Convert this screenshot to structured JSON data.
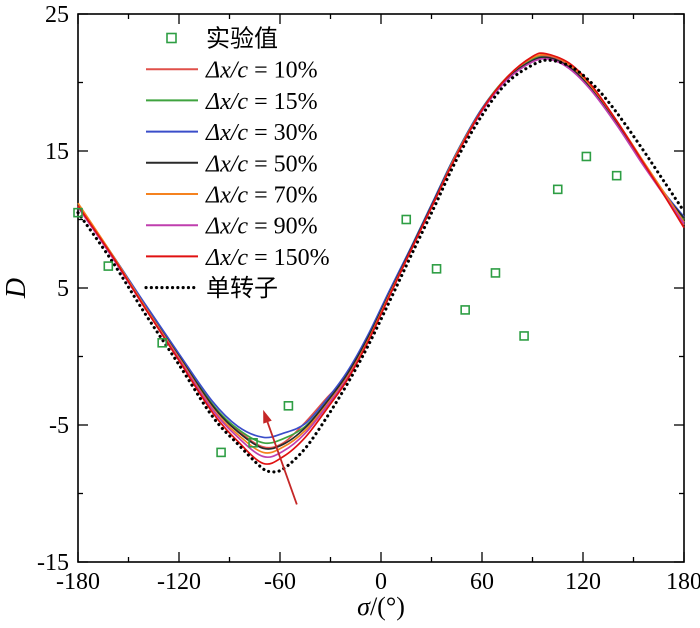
{
  "page": {
    "background": "#ffffff"
  },
  "chart_data": {
    "type": "line",
    "title": "",
    "xlabel": "σ/(°)",
    "xlabel_italic": "σ",
    "xlabel_rest": "/(°)",
    "ylabel": "D",
    "xlim": [
      -180,
      180
    ],
    "ylim": [
      -15,
      25
    ],
    "x_ticks": [
      -180,
      -120,
      -60,
      0,
      60,
      120,
      180
    ],
    "y_ticks": [
      -15,
      -5,
      5,
      15,
      25
    ],
    "x_minor_step": 30,
    "y_minor_step": 5,
    "grid": false,
    "legend_position": "upper-left",
    "arrow": {
      "color": "#c52727",
      "from": [
        -50,
        -10.8
      ],
      "to": [
        -70,
        -3.9
      ]
    },
    "scatter": {
      "key": "experimental",
      "name": "实验值",
      "color": "#2e9e44",
      "marker": "open-square",
      "points": [
        [
          -180,
          10.5
        ],
        [
          -162,
          6.6
        ],
        [
          -130,
          1.0
        ],
        [
          -95,
          -7.0
        ],
        [
          -76,
          -6.3
        ],
        [
          -55,
          -3.6
        ],
        [
          15,
          10.0
        ],
        [
          33,
          6.4
        ],
        [
          50,
          3.4
        ],
        [
          68,
          6.1
        ],
        [
          85,
          1.5
        ],
        [
          105,
          12.2
        ],
        [
          122,
          14.6
        ],
        [
          140,
          13.2
        ]
      ]
    },
    "series": [
      {
        "key": "dx10",
        "name": "Δx/c = 10%",
        "color": "#e0504a",
        "style": "solid",
        "points": [
          [
            -180,
            11.0
          ],
          [
            -160,
            7.4
          ],
          [
            -140,
            3.6
          ],
          [
            -120,
            0.0
          ],
          [
            -100,
            -3.6
          ],
          [
            -85,
            -5.4
          ],
          [
            -70,
            -6.6
          ],
          [
            -58,
            -6.3
          ],
          [
            -45,
            -4.8
          ],
          [
            -32,
            -3.0
          ],
          [
            -20,
            -1.4
          ],
          [
            -8,
            1.2
          ],
          [
            5,
            4.6
          ],
          [
            18,
            7.9
          ],
          [
            32,
            11.5
          ],
          [
            45,
            14.8
          ],
          [
            60,
            18.0
          ],
          [
            75,
            20.3
          ],
          [
            90,
            21.7
          ],
          [
            100,
            21.9
          ],
          [
            112,
            21.2
          ],
          [
            125,
            19.6
          ],
          [
            140,
            17.1
          ],
          [
            155,
            14.3
          ],
          [
            168,
            11.9
          ],
          [
            180,
            9.6
          ]
        ]
      },
      {
        "key": "dx15",
        "name": "Δx/c = 15%",
        "color": "#3fa33f",
        "style": "solid",
        "points": [
          [
            -180,
            11.1
          ],
          [
            -160,
            7.5
          ],
          [
            -140,
            3.7
          ],
          [
            -120,
            0.1
          ],
          [
            -100,
            -3.5
          ],
          [
            -85,
            -5.3
          ],
          [
            -70,
            -6.3
          ],
          [
            -58,
            -6.0
          ],
          [
            -45,
            -5.1
          ],
          [
            -32,
            -3.3
          ],
          [
            -20,
            -1.2
          ],
          [
            -8,
            1.4
          ],
          [
            5,
            4.7
          ],
          [
            18,
            8.0
          ],
          [
            32,
            11.6
          ],
          [
            45,
            14.9
          ],
          [
            60,
            18.1
          ],
          [
            75,
            20.4
          ],
          [
            90,
            21.7
          ],
          [
            100,
            21.8
          ],
          [
            112,
            21.1
          ],
          [
            125,
            19.5
          ],
          [
            140,
            17.0
          ],
          [
            155,
            14.2
          ],
          [
            168,
            11.9
          ],
          [
            180,
            10.0
          ]
        ]
      },
      {
        "key": "dx30",
        "name": "Δx/c = 30%",
        "color": "#3a4dc9",
        "style": "solid",
        "points": [
          [
            -180,
            11.0
          ],
          [
            -160,
            7.5
          ],
          [
            -140,
            3.8
          ],
          [
            -120,
            0.2
          ],
          [
            -100,
            -3.3
          ],
          [
            -85,
            -5.1
          ],
          [
            -70,
            -5.9
          ],
          [
            -58,
            -5.6
          ],
          [
            -45,
            -4.9
          ],
          [
            -32,
            -3.1
          ],
          [
            -20,
            -1.1
          ],
          [
            -8,
            1.5
          ],
          [
            5,
            4.8
          ],
          [
            18,
            8.0
          ],
          [
            32,
            11.6
          ],
          [
            45,
            14.9
          ],
          [
            60,
            18.1
          ],
          [
            75,
            20.3
          ],
          [
            90,
            21.6
          ],
          [
            100,
            21.8
          ],
          [
            112,
            21.1
          ],
          [
            125,
            19.5
          ],
          [
            140,
            17.0
          ],
          [
            155,
            14.3
          ],
          [
            168,
            12.0
          ],
          [
            180,
            10.2
          ]
        ]
      },
      {
        "key": "dx50",
        "name": "Δx/c = 50%",
        "color": "#2a2a2a",
        "style": "solid",
        "points": [
          [
            -180,
            11.1
          ],
          [
            -160,
            7.4
          ],
          [
            -140,
            3.6
          ],
          [
            -120,
            0.0
          ],
          [
            -100,
            -3.6
          ],
          [
            -85,
            -5.5
          ],
          [
            -70,
            -6.7
          ],
          [
            -58,
            -6.4
          ],
          [
            -45,
            -5.2
          ],
          [
            -32,
            -3.3
          ],
          [
            -20,
            -1.3
          ],
          [
            -8,
            1.3
          ],
          [
            5,
            4.6
          ],
          [
            18,
            7.9
          ],
          [
            32,
            11.5
          ],
          [
            45,
            14.8
          ],
          [
            60,
            18.0
          ],
          [
            75,
            20.3
          ],
          [
            90,
            21.6
          ],
          [
            100,
            21.8
          ],
          [
            112,
            21.1
          ],
          [
            125,
            19.6
          ],
          [
            140,
            17.1
          ],
          [
            155,
            14.3
          ],
          [
            168,
            11.9
          ],
          [
            180,
            10.1
          ]
        ]
      },
      {
        "key": "dx70",
        "name": "Δx/c = 70%",
        "color": "#f5821f",
        "style": "solid",
        "points": [
          [
            -180,
            11.2
          ],
          [
            -160,
            7.5
          ],
          [
            -140,
            3.6
          ],
          [
            -120,
            -0.1
          ],
          [
            -100,
            -3.8
          ],
          [
            -85,
            -5.7
          ],
          [
            -70,
            -7.0
          ],
          [
            -58,
            -6.6
          ],
          [
            -45,
            -5.4
          ],
          [
            -32,
            -3.5
          ],
          [
            -20,
            -1.5
          ],
          [
            -8,
            1.1
          ],
          [
            5,
            4.5
          ],
          [
            18,
            7.8
          ],
          [
            32,
            11.4
          ],
          [
            45,
            14.8
          ],
          [
            60,
            18.0
          ],
          [
            75,
            20.4
          ],
          [
            90,
            21.8
          ],
          [
            100,
            22.0
          ],
          [
            112,
            21.3
          ],
          [
            125,
            19.7
          ],
          [
            140,
            17.2
          ],
          [
            155,
            14.4
          ],
          [
            168,
            12.0
          ],
          [
            180,
            9.8
          ]
        ]
      },
      {
        "key": "dx90",
        "name": "Δx/c = 90%",
        "color": "#bf3fae",
        "style": "solid",
        "points": [
          [
            -180,
            10.9
          ],
          [
            -160,
            7.3
          ],
          [
            -140,
            3.5
          ],
          [
            -120,
            -0.2
          ],
          [
            -100,
            -3.9
          ],
          [
            -85,
            -5.9
          ],
          [
            -70,
            -7.3
          ],
          [
            -58,
            -6.9
          ],
          [
            -45,
            -5.6
          ],
          [
            -32,
            -3.6
          ],
          [
            -20,
            -1.6
          ],
          [
            -8,
            1.0
          ],
          [
            5,
            4.4
          ],
          [
            18,
            7.8
          ],
          [
            32,
            11.4
          ],
          [
            45,
            14.7
          ],
          [
            60,
            17.9
          ],
          [
            75,
            20.2
          ],
          [
            90,
            21.5
          ],
          [
            100,
            21.7
          ],
          [
            112,
            21.0
          ],
          [
            125,
            19.4
          ],
          [
            140,
            16.9
          ],
          [
            155,
            14.1
          ],
          [
            168,
            11.8
          ],
          [
            180,
            9.7
          ]
        ]
      },
      {
        "key": "dx150",
        "name": "Δx/c = 150%",
        "color": "#e01010",
        "style": "solid",
        "points": [
          [
            -180,
            11.0
          ],
          [
            -160,
            7.4
          ],
          [
            -140,
            3.5
          ],
          [
            -120,
            -0.3
          ],
          [
            -100,
            -4.1
          ],
          [
            -85,
            -6.2
          ],
          [
            -70,
            -7.8
          ],
          [
            -58,
            -7.3
          ],
          [
            -45,
            -5.9
          ],
          [
            -32,
            -3.8
          ],
          [
            -20,
            -1.7
          ],
          [
            -8,
            1.0
          ],
          [
            5,
            4.4
          ],
          [
            18,
            7.8
          ],
          [
            32,
            11.4
          ],
          [
            45,
            14.7
          ],
          [
            60,
            18.0
          ],
          [
            75,
            20.4
          ],
          [
            90,
            21.9
          ],
          [
            98,
            22.1
          ],
          [
            112,
            21.4
          ],
          [
            125,
            19.8
          ],
          [
            140,
            17.2
          ],
          [
            155,
            14.3
          ],
          [
            168,
            11.8
          ],
          [
            180,
            9.4
          ]
        ]
      },
      {
        "key": "single-rotor",
        "name": "单转子",
        "color": "#000000",
        "style": "dotted",
        "points": [
          [
            -180,
            10.5
          ],
          [
            -160,
            7.0
          ],
          [
            -140,
            3.1
          ],
          [
            -120,
            -0.6
          ],
          [
            -100,
            -4.4
          ],
          [
            -85,
            -6.4
          ],
          [
            -72,
            -8.0
          ],
          [
            -66,
            -8.4
          ],
          [
            -58,
            -8.2
          ],
          [
            -45,
            -6.7
          ],
          [
            -32,
            -4.4
          ],
          [
            -20,
            -2.0
          ],
          [
            -8,
            0.7
          ],
          [
            5,
            4.0
          ],
          [
            18,
            7.4
          ],
          [
            32,
            11.0
          ],
          [
            45,
            14.4
          ],
          [
            60,
            17.6
          ],
          [
            75,
            20.0
          ],
          [
            92,
            21.4
          ],
          [
            102,
            21.6
          ],
          [
            115,
            21.0
          ],
          [
            128,
            19.6
          ],
          [
            140,
            17.8
          ],
          [
            155,
            15.2
          ],
          [
            168,
            12.8
          ],
          [
            180,
            10.6
          ]
        ]
      }
    ]
  }
}
